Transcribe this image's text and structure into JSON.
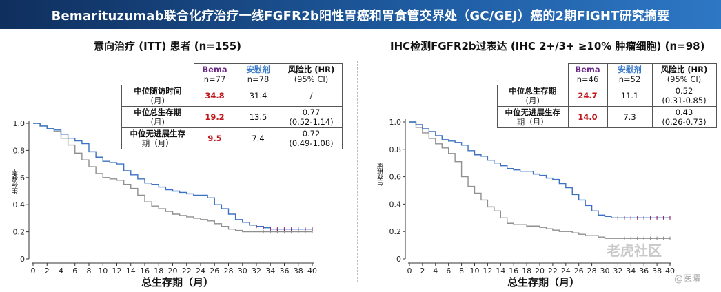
{
  "header": {
    "title": "Bemarituzumab联合化疗治疗一线FGFR2b阳性胃癌和胃食管交界处（GC/GEJ）癌的2期FIGHT研究摘要"
  },
  "colors": {
    "bema": "#3b73c2",
    "anwei": "#8f8f8f",
    "censor": "#8a2a7a"
  },
  "watermark": {
    "main": "老虎社区",
    "sub": "@医曜"
  },
  "chart_data": [
    {
      "type": "line",
      "title": "意向治疗 (ITT) 患者 (n=155)",
      "xlabel": "总生存期（月）",
      "ylabel": "生存概率",
      "xlim": [
        0,
        40
      ],
      "ylim": [
        0,
        1.0
      ],
      "xticks": [
        "0",
        "2",
        "4",
        "6",
        "8",
        "10",
        "12",
        "14",
        "16",
        "18",
        "20",
        "22",
        "24",
        "26",
        "28",
        "30",
        "32",
        "34",
        "36",
        "38",
        "40"
      ],
      "yticks": [
        "0",
        "0.2",
        "0.4",
        "0.6",
        "0.8",
        "1.0"
      ],
      "table": {
        "headers": [
          {
            "main": "",
            "sub": ""
          },
          {
            "main": "Bema",
            "sub": "n=77"
          },
          {
            "main": "安慰剂",
            "sub": "n=78"
          },
          {
            "main": "风险比 (HR)",
            "sub": "(95% CI)"
          }
        ],
        "rows": [
          {
            "label": "中位随访时间",
            "label_unit": "(月)",
            "bema": "34.8",
            "anwei": "31.4",
            "hr": "/",
            "ci": ""
          },
          {
            "label": "中位总生存期",
            "label_unit": "(月)",
            "bema": "19.2",
            "anwei": "13.5",
            "hr": "0.77",
            "ci": "(0.52-1.14)"
          },
          {
            "label": "中位无进展生存",
            "label_unit": "期（月）",
            "bema": "9.5",
            "anwei": "7.4",
            "hr": "0.72",
            "ci": "(0.49-1.08)"
          }
        ]
      },
      "series": [
        {
          "name": "Bema",
          "x": [
            0,
            1,
            2,
            3,
            4,
            5,
            6,
            7,
            8,
            9,
            10,
            11,
            12,
            13,
            14,
            15,
            16,
            17,
            18,
            19,
            20,
            21,
            22,
            23,
            24,
            25,
            26,
            27,
            28,
            29,
            30,
            31,
            32,
            33,
            34,
            35,
            36,
            37,
            38,
            39,
            40
          ],
          "y": [
            1.0,
            0.98,
            0.96,
            0.95,
            0.92,
            0.89,
            0.87,
            0.85,
            0.79,
            0.75,
            0.72,
            0.71,
            0.7,
            0.65,
            0.62,
            0.59,
            0.56,
            0.55,
            0.53,
            0.51,
            0.5,
            0.49,
            0.48,
            0.47,
            0.47,
            0.45,
            0.4,
            0.37,
            0.33,
            0.29,
            0.27,
            0.25,
            0.24,
            0.23,
            0.22,
            0.22,
            0.22,
            0.22,
            0.22,
            0.22,
            0.22
          ]
        },
        {
          "name": "安慰剂",
          "x": [
            0,
            1,
            2,
            3,
            4,
            5,
            6,
            7,
            8,
            9,
            10,
            11,
            12,
            13,
            14,
            15,
            16,
            17,
            18,
            19,
            20,
            21,
            22,
            23,
            24,
            25,
            26,
            27,
            28,
            29,
            30,
            31,
            32,
            33,
            34,
            35,
            36,
            37,
            38,
            39,
            40
          ],
          "y": [
            1.0,
            0.98,
            0.96,
            0.94,
            0.89,
            0.84,
            0.78,
            0.73,
            0.68,
            0.63,
            0.6,
            0.59,
            0.58,
            0.55,
            0.52,
            0.47,
            0.42,
            0.39,
            0.37,
            0.35,
            0.33,
            0.32,
            0.31,
            0.3,
            0.29,
            0.28,
            0.26,
            0.24,
            0.22,
            0.21,
            0.2,
            0.2,
            0.2,
            0.2,
            0.2,
            0.2,
            0.2,
            0.2,
            0.2,
            0.2,
            0.2
          ]
        }
      ]
    },
    {
      "type": "line",
      "title": "IHC检测FGFR2b过表达 (IHC 2+/3+ ≥10% 肿瘤细胞) (n=98)",
      "xlabel": "总生存期（月）",
      "ylabel": "生存概率",
      "xlim": [
        0,
        40
      ],
      "ylim": [
        0,
        1.0
      ],
      "xticks": [
        "0",
        "2",
        "4",
        "6",
        "8",
        "10",
        "12",
        "14",
        "16",
        "18",
        "20",
        "22",
        "24",
        "26",
        "28",
        "30",
        "32",
        "34",
        "36",
        "38",
        "40"
      ],
      "yticks": [
        "0",
        "0.2",
        "0.4",
        "0.6",
        "0.8",
        "1.0"
      ],
      "table": {
        "headers": [
          {
            "main": "",
            "sub": ""
          },
          {
            "main": "Bema",
            "sub": "n=46"
          },
          {
            "main": "安慰剂",
            "sub": "n=52"
          },
          {
            "main": "风险比 (HR)",
            "sub": "(95% CI)"
          }
        ],
        "rows": [
          {
            "label": "中位总生存期",
            "label_unit": "(月)",
            "bema": "24.7",
            "anwei": "11.1",
            "hr": "0.52",
            "ci": "(0.31-0.85)"
          },
          {
            "label": "中位无进展生存",
            "label_unit": "期（月）",
            "bema": "14.0",
            "anwei": "7.3",
            "hr": "0.43",
            "ci": "(0.26-0.73)"
          }
        ]
      },
      "series": [
        {
          "name": "Bema",
          "x": [
            0,
            1,
            2,
            3,
            4,
            5,
            6,
            7,
            8,
            9,
            10,
            11,
            12,
            13,
            14,
            15,
            16,
            17,
            18,
            19,
            20,
            21,
            22,
            23,
            24,
            25,
            26,
            27,
            28,
            29,
            30,
            31,
            32,
            33,
            34,
            35,
            36,
            37,
            38,
            39,
            40
          ],
          "y": [
            1.0,
            0.98,
            0.95,
            0.93,
            0.9,
            0.87,
            0.86,
            0.85,
            0.83,
            0.79,
            0.76,
            0.75,
            0.72,
            0.7,
            0.68,
            0.66,
            0.65,
            0.64,
            0.64,
            0.62,
            0.61,
            0.59,
            0.58,
            0.55,
            0.52,
            0.47,
            0.43,
            0.39,
            0.35,
            0.32,
            0.31,
            0.3,
            0.3,
            0.3,
            0.3,
            0.3,
            0.3,
            0.3,
            0.3,
            0.3,
            0.3
          ]
        },
        {
          "name": "安慰剂",
          "x": [
            0,
            1,
            2,
            3,
            4,
            5,
            6,
            7,
            8,
            9,
            10,
            11,
            12,
            13,
            14,
            15,
            16,
            17,
            18,
            19,
            20,
            21,
            22,
            23,
            24,
            25,
            26,
            27,
            28,
            29,
            30,
            31,
            32,
            33,
            34,
            35,
            36,
            37,
            38,
            39,
            40
          ],
          "y": [
            1.0,
            0.96,
            0.92,
            0.88,
            0.84,
            0.81,
            0.77,
            0.71,
            0.6,
            0.53,
            0.48,
            0.43,
            0.38,
            0.35,
            0.3,
            0.26,
            0.25,
            0.25,
            0.24,
            0.24,
            0.23,
            0.22,
            0.21,
            0.2,
            0.2,
            0.19,
            0.18,
            0.17,
            0.17,
            0.16,
            0.15,
            0.15,
            0.15,
            0.15,
            0.15,
            0.15,
            0.15,
            0.15,
            0.15,
            0.15,
            0.15
          ]
        }
      ]
    }
  ]
}
